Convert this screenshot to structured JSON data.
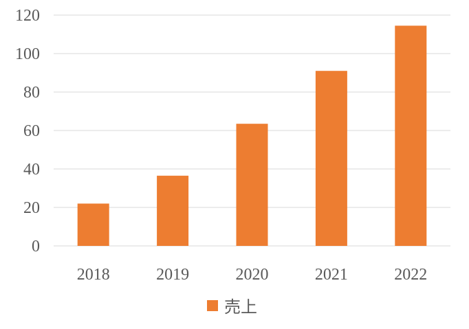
{
  "chart_data": {
    "type": "bar",
    "categories": [
      "2018",
      "2019",
      "2020",
      "2021",
      "2022"
    ],
    "series": [
      {
        "name": "売上",
        "values": [
          22,
          36.5,
          63.5,
          91,
          114.5
        ],
        "color": "#ed7d31"
      }
    ],
    "ylim": [
      0,
      120
    ],
    "yticks": [
      0,
      20,
      40,
      60,
      80,
      100,
      120
    ],
    "title": "",
    "xlabel": "",
    "ylabel": "",
    "grid": true,
    "legend": "bottom",
    "colors": {
      "bar": "#ed7d31",
      "grid": "#d9d9d9",
      "text": "#595959"
    }
  }
}
